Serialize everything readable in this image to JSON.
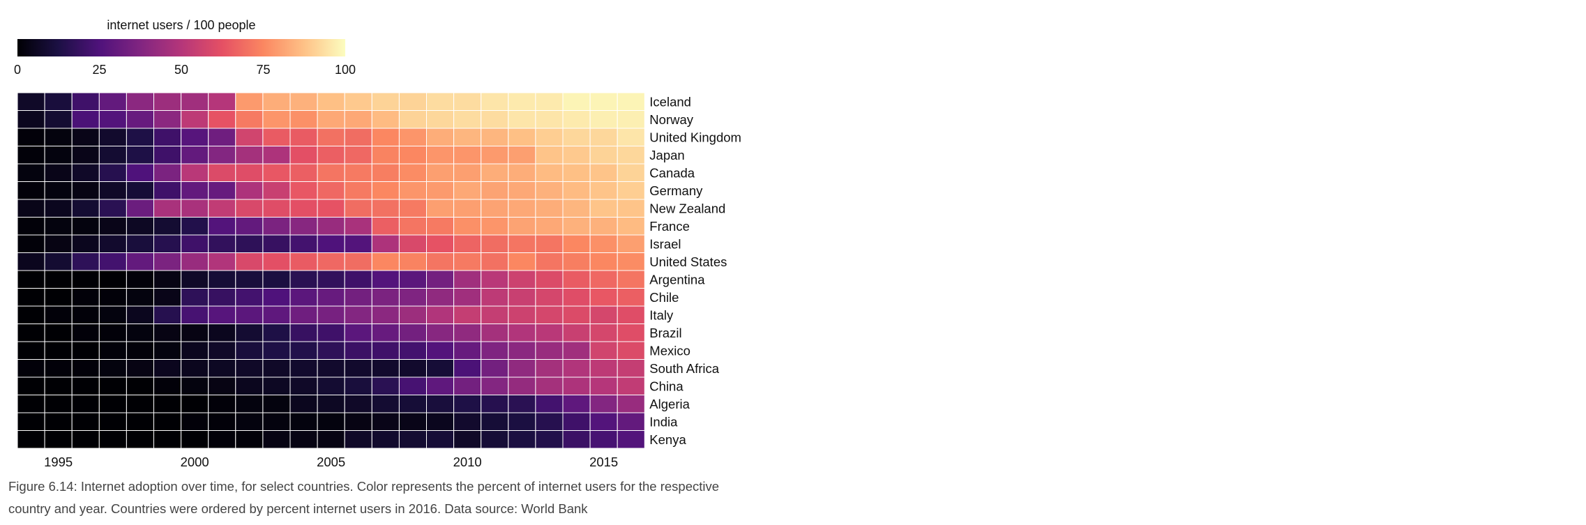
{
  "chart_data": {
    "type": "heatmap",
    "title": "",
    "xlabel": "",
    "ylabel": "",
    "colorbar": {
      "label": "internet users / 100 people",
      "ticks": [
        "0",
        "25",
        "50",
        "75",
        "100"
      ],
      "range": [
        0,
        100
      ],
      "colormap": "magma",
      "stops": [
        "#000004",
        "#1c1044",
        "#4f127b",
        "#812581",
        "#b5367a",
        "#e55064",
        "#fb8761",
        "#fec287",
        "#fcfdbf"
      ]
    },
    "x_ticks": [
      "1995",
      "2000",
      "2005",
      "2010",
      "2015"
    ],
    "years": [
      1994,
      1995,
      1996,
      1997,
      1998,
      1999,
      2000,
      2001,
      2002,
      2003,
      2004,
      2005,
      2006,
      2007,
      2008,
      2009,
      2010,
      2011,
      2012,
      2013,
      2014,
      2015,
      2016
    ],
    "countries": [
      "Iceland",
      "Norway",
      "United Kingdom",
      "Japan",
      "Canada",
      "Germany",
      "New Zealand",
      "France",
      "Israel",
      "United States",
      "Argentina",
      "Chile",
      "Italy",
      "Brazil",
      "Mexico",
      "South Africa",
      "China",
      "Algeria",
      "India",
      "Kenya"
    ],
    "values": [
      [
        7,
        11,
        21,
        30,
        40,
        44,
        45,
        50,
        79,
        83,
        84,
        87,
        89,
        91,
        91,
        93,
        93,
        95,
        96,
        96,
        98,
        98,
        98
      ],
      [
        5,
        9,
        24,
        26,
        31,
        40,
        52,
        63,
        72,
        78,
        77,
        82,
        82,
        86,
        91,
        92,
        93,
        93,
        95,
        95,
        96,
        97,
        97
      ],
      [
        1,
        2,
        4,
        8,
        13,
        21,
        27,
        33,
        57,
        65,
        65,
        70,
        69,
        75,
        78,
        83,
        85,
        85,
        87,
        90,
        92,
        92,
        95
      ],
      [
        1,
        2,
        4,
        9,
        13,
        21,
        30,
        38,
        46,
        48,
        62,
        66,
        68,
        74,
        75,
        78,
        78,
        79,
        80,
        88,
        89,
        91,
        92
      ],
      [
        2,
        4,
        7,
        15,
        25,
        36,
        51,
        60,
        61,
        64,
        66,
        71,
        72,
        73,
        76,
        80,
        80,
        83,
        83,
        86,
        87,
        88,
        91
      ],
      [
        1,
        2,
        3,
        7,
        10,
        21,
        30,
        31,
        48,
        55,
        64,
        68,
        72,
        75,
        78,
        79,
        82,
        81,
        82,
        84,
        86,
        88,
        90
      ],
      [
        4,
        5,
        9,
        16,
        32,
        47,
        47,
        53,
        59,
        61,
        62,
        63,
        69,
        70,
        72,
        80,
        80,
        81,
        82,
        83,
        85,
        88,
        88
      ],
      [
        1,
        2,
        2,
        4,
        6,
        9,
        14,
        26,
        30,
        36,
        39,
        43,
        47,
        66,
        71,
        72,
        77,
        78,
        81,
        82,
        84,
        84,
        86
      ],
      [
        1,
        3,
        5,
        8,
        11,
        15,
        21,
        18,
        17,
        19,
        22,
        25,
        26,
        48,
        59,
        63,
        67,
        69,
        71,
        71,
        75,
        77,
        80
      ],
      [
        5,
        9,
        17,
        22,
        30,
        36,
        43,
        49,
        59,
        62,
        65,
        68,
        69,
        75,
        74,
        71,
        72,
        70,
        75,
        71,
        73,
        75,
        76
      ],
      [
        0,
        0,
        0,
        0,
        1,
        3,
        7,
        10,
        11,
        12,
        16,
        18,
        21,
        26,
        28,
        34,
        45,
        51,
        56,
        60,
        65,
        68,
        71
      ],
      [
        0,
        0,
        1,
        1,
        2,
        4,
        17,
        19,
        22,
        25,
        28,
        31,
        34,
        36,
        37,
        41,
        45,
        52,
        55,
        58,
        61,
        64,
        66
      ],
      [
        0,
        1,
        1,
        2,
        5,
        15,
        23,
        27,
        28,
        29,
        33,
        35,
        38,
        40,
        44,
        49,
        54,
        54,
        56,
        58,
        60,
        58,
        61
      ],
      [
        0,
        0,
        1,
        1,
        2,
        3,
        3,
        5,
        9,
        13,
        19,
        21,
        28,
        31,
        34,
        39,
        41,
        46,
        49,
        51,
        55,
        58,
        61
      ],
      [
        0,
        0,
        0,
        1,
        1,
        2,
        5,
        7,
        11,
        13,
        14,
        17,
        20,
        21,
        22,
        26,
        31,
        37,
        40,
        43,
        45,
        57,
        60
      ],
      [
        1,
        1,
        1,
        2,
        3,
        5,
        5,
        6,
        7,
        7,
        8,
        8,
        8,
        8,
        8,
        10,
        24,
        34,
        41,
        46,
        49,
        52,
        54
      ],
      [
        0,
        0,
        0,
        0,
        0,
        1,
        2,
        3,
        5,
        6,
        7,
        9,
        11,
        16,
        23,
        29,
        34,
        38,
        42,
        46,
        48,
        50,
        53
      ],
      [
        0,
        0,
        0,
        0,
        0,
        0,
        0,
        1,
        2,
        2,
        5,
        6,
        7,
        9,
        10,
        11,
        13,
        15,
        16,
        22,
        29,
        38,
        43
      ],
      [
        0,
        0,
        0,
        0,
        0,
        0,
        1,
        1,
        2,
        2,
        2,
        2,
        3,
        4,
        4,
        5,
        8,
        10,
        12,
        15,
        21,
        26,
        30
      ],
      [
        0,
        0,
        0,
        0,
        0,
        0,
        0,
        1,
        1,
        3,
        3,
        3,
        7,
        8,
        9,
        10,
        7,
        10,
        12,
        14,
        20,
        23,
        26
      ]
    ]
  },
  "caption": {
    "line1": "Figure 6.14: Internet adoption over time, for select countries. Color represents the percent of internet users for the respective",
    "line2": "country and year. Countries were ordered by percent internet users in 2016. Data source: World Bank"
  }
}
